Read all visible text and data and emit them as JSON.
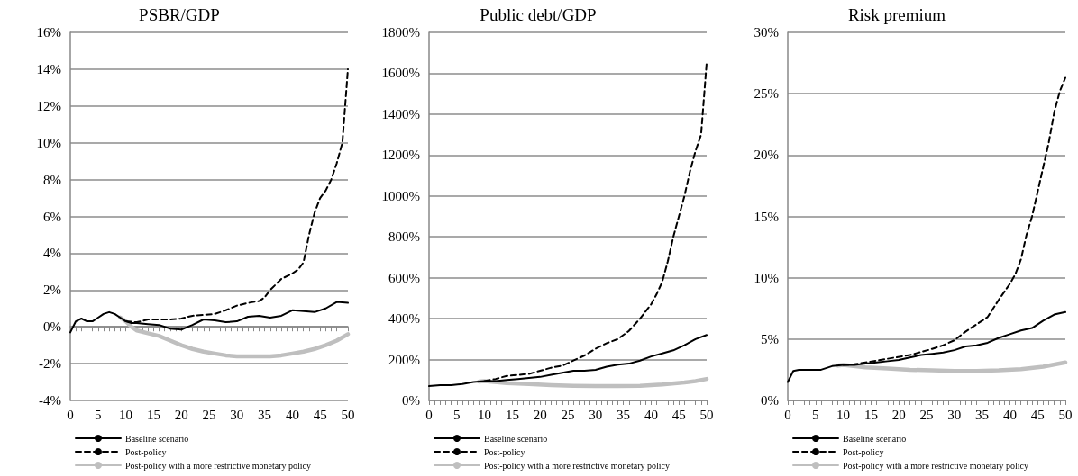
{
  "chart_data": [
    {
      "type": "line",
      "title": "PSBR/GDP",
      "legend": "bottom",
      "grid": "y",
      "marker": "none",
      "xlim": [
        0,
        50
      ],
      "xticks": [
        0,
        {
          "value": 1,
          "label": null
        },
        {
          "value": 2,
          "label": null
        },
        {
          "value": 3,
          "label": null
        },
        {
          "value": 4,
          "label": null
        },
        5,
        {
          "value": 6,
          "label": null
        },
        {
          "value": 7,
          "label": null
        },
        {
          "value": 8,
          "label": null
        },
        {
          "value": 9,
          "label": null
        },
        10,
        {
          "value": 11,
          "label": null
        },
        {
          "value": 12,
          "label": null
        },
        {
          "value": 13,
          "label": null
        },
        {
          "value": 14,
          "label": null
        },
        15,
        {
          "value": 16,
          "label": null
        },
        {
          "value": 17,
          "label": null
        },
        {
          "value": 18,
          "label": null
        },
        {
          "value": 19,
          "label": null
        },
        20,
        {
          "value": 21,
          "label": null
        },
        {
          "value": 22,
          "label": null
        },
        {
          "value": 23,
          "label": null
        },
        {
          "value": 24,
          "label": null
        },
        25,
        {
          "value": 26,
          "label": null
        },
        {
          "value": 27,
          "label": null
        },
        {
          "value": 28,
          "label": null
        },
        {
          "value": 29,
          "label": null
        },
        30,
        {
          "value": 31,
          "label": null
        },
        {
          "value": 32,
          "label": null
        },
        {
          "value": 33,
          "label": null
        },
        {
          "value": 34,
          "label": null
        },
        35,
        {
          "value": 36,
          "label": null
        },
        {
          "value": 37,
          "label": null
        },
        {
          "value": 38,
          "label": null
        },
        {
          "value": 39,
          "label": null
        },
        40,
        {
          "value": 41,
          "label": null
        },
        {
          "value": 42,
          "label": null
        },
        {
          "value": 43,
          "label": null
        },
        {
          "value": 44,
          "label": null
        },
        45,
        {
          "value": 46,
          "label": null
        },
        {
          "value": 47,
          "label": null
        },
        {
          "value": 48,
          "label": null
        },
        {
          "value": 49,
          "label": null
        },
        50
      ],
      "ylim": [
        -4,
        16
      ],
      "yticks": [
        {
          "value": -4,
          "label": "-4%"
        },
        {
          "value": -2,
          "label": "-2%"
        },
        {
          "value": 0,
          "label": "0%"
        },
        {
          "value": 2,
          "label": "2%"
        },
        {
          "value": 4,
          "label": "4%"
        },
        {
          "value": 6,
          "label": "6%"
        },
        {
          "value": 8,
          "label": "8%"
        },
        {
          "value": 10,
          "label": "10%"
        },
        {
          "value": 12,
          "label": "12%"
        },
        {
          "value": 14,
          "label": "14%"
        },
        {
          "value": 16,
          "label": "16%"
        }
      ],
      "series": [
        {
          "name": "Baseline scenario",
          "color": "#000000",
          "line_style": "solid",
          "x": [
            0,
            1,
            2,
            3,
            4,
            5,
            6,
            7,
            8,
            9,
            10,
            11,
            12,
            14,
            16,
            18,
            20,
            22,
            24,
            26,
            28,
            30,
            32,
            34,
            36,
            38,
            40,
            42,
            44,
            46,
            48,
            50
          ],
          "values": [
            -0.3,
            0.3,
            0.45,
            0.3,
            0.3,
            0.5,
            0.7,
            0.8,
            0.7,
            0.5,
            0.3,
            0.2,
            0.2,
            0.15,
            0.1,
            -0.1,
            -0.15,
            0.1,
            0.4,
            0.35,
            0.25,
            0.3,
            0.55,
            0.6,
            0.5,
            0.6,
            0.9,
            0.85,
            0.8,
            1,
            1.35,
            1.3
          ]
        },
        {
          "name": "Post-policy",
          "color": "#000000",
          "line_style": "dashed",
          "x": [
            10,
            12,
            14,
            16,
            18,
            20,
            22,
            24,
            26,
            28,
            30,
            32,
            34,
            35,
            36,
            38,
            40,
            41,
            42,
            43,
            44,
            45,
            46,
            47,
            48,
            49,
            50
          ],
          "values": [
            0.3,
            0.25,
            0.4,
            0.4,
            0.4,
            0.45,
            0.6,
            0.65,
            0.7,
            0.9,
            1.15,
            1.3,
            1.4,
            1.6,
            2,
            2.6,
            2.9,
            3.1,
            3.5,
            5,
            6.2,
            7,
            7.4,
            8,
            8.9,
            10,
            14
          ]
        },
        {
          "name": "Post-policy with a more restrictive monetary policy",
          "color": "#bfbfbf",
          "line_style": "solid",
          "x": [
            9,
            10,
            11,
            12,
            14,
            16,
            18,
            20,
            22,
            24,
            26,
            28,
            30,
            32,
            34,
            36,
            38,
            40,
            42,
            44,
            46,
            48,
            50
          ],
          "values": [
            0.5,
            0.3,
            0,
            -0.2,
            -0.35,
            -0.5,
            -0.75,
            -1,
            -1.2,
            -1.35,
            -1.45,
            -1.55,
            -1.6,
            -1.6,
            -1.6,
            -1.6,
            -1.55,
            -1.45,
            -1.35,
            -1.2,
            -1,
            -0.75,
            -0.4
          ]
        }
      ]
    },
    {
      "type": "line",
      "title": "Public debt/GDP",
      "legend": "bottom",
      "grid": "y",
      "marker": "none",
      "xlim": [
        0,
        50
      ],
      "xticks": [
        0,
        {
          "value": 1,
          "label": null
        },
        {
          "value": 2,
          "label": null
        },
        {
          "value": 3,
          "label": null
        },
        {
          "value": 4,
          "label": null
        },
        5,
        {
          "value": 6,
          "label": null
        },
        {
          "value": 7,
          "label": null
        },
        {
          "value": 8,
          "label": null
        },
        {
          "value": 9,
          "label": null
        },
        10,
        {
          "value": 11,
          "label": null
        },
        {
          "value": 12,
          "label": null
        },
        {
          "value": 13,
          "label": null
        },
        {
          "value": 14,
          "label": null
        },
        15,
        {
          "value": 16,
          "label": null
        },
        {
          "value": 17,
          "label": null
        },
        {
          "value": 18,
          "label": null
        },
        {
          "value": 19,
          "label": null
        },
        20,
        {
          "value": 21,
          "label": null
        },
        {
          "value": 22,
          "label": null
        },
        {
          "value": 23,
          "label": null
        },
        {
          "value": 24,
          "label": null
        },
        25,
        {
          "value": 26,
          "label": null
        },
        {
          "value": 27,
          "label": null
        },
        {
          "value": 28,
          "label": null
        },
        {
          "value": 29,
          "label": null
        },
        30,
        {
          "value": 31,
          "label": null
        },
        {
          "value": 32,
          "label": null
        },
        {
          "value": 33,
          "label": null
        },
        {
          "value": 34,
          "label": null
        },
        35,
        {
          "value": 36,
          "label": null
        },
        {
          "value": 37,
          "label": null
        },
        {
          "value": 38,
          "label": null
        },
        {
          "value": 39,
          "label": null
        },
        40,
        {
          "value": 41,
          "label": null
        },
        {
          "value": 42,
          "label": null
        },
        {
          "value": 43,
          "label": null
        },
        {
          "value": 44,
          "label": null
        },
        45,
        {
          "value": 46,
          "label": null
        },
        {
          "value": 47,
          "label": null
        },
        {
          "value": 48,
          "label": null
        },
        {
          "value": 49,
          "label": null
        },
        50
      ],
      "ylim": [
        0,
        1800
      ],
      "yticks": [
        {
          "value": 0,
          "label": "0%"
        },
        {
          "value": 200,
          "label": "200%"
        },
        {
          "value": 400,
          "label": "400%"
        },
        {
          "value": 600,
          "label": "600%"
        },
        {
          "value": 800,
          "label": "800%"
        },
        {
          "value": 1000,
          "label": "1000%"
        },
        {
          "value": 1200,
          "label": "1200%"
        },
        {
          "value": 1400,
          "label": "1400%"
        },
        {
          "value": 1600,
          "label": "1600%"
        },
        {
          "value": 1800,
          "label": "1800%"
        }
      ],
      "series": [
        {
          "name": "Baseline scenario",
          "color": "#000000",
          "line_style": "solid",
          "x": [
            0,
            2,
            4,
            6,
            8,
            10,
            12,
            14,
            16,
            18,
            20,
            22,
            24,
            26,
            28,
            30,
            32,
            34,
            36,
            38,
            40,
            42,
            44,
            46,
            48,
            50
          ],
          "values": [
            70,
            75,
            75,
            80,
            90,
            95,
            95,
            100,
            105,
            110,
            115,
            125,
            135,
            145,
            145,
            150,
            165,
            175,
            180,
            195,
            215,
            230,
            245,
            270,
            300,
            320
          ]
        },
        {
          "name": "Post-policy",
          "color": "#000000",
          "line_style": "dashed",
          "x": [
            10,
            12,
            14,
            16,
            18,
            20,
            22,
            24,
            26,
            28,
            30,
            32,
            34,
            36,
            38,
            40,
            41,
            42,
            43,
            44,
            45,
            46,
            47,
            48,
            49,
            50
          ],
          "values": [
            95,
            105,
            120,
            125,
            130,
            145,
            160,
            170,
            195,
            220,
            253,
            280,
            300,
            340,
            400,
            470,
            520,
            580,
            680,
            800,
            900,
            1000,
            1120,
            1220,
            1300,
            1650
          ]
        },
        {
          "name": "Post-policy with a more restrictive monetary policy",
          "color": "#bfbfbf",
          "line_style": "solid",
          "x": [
            9,
            10,
            14,
            18,
            22,
            26,
            30,
            34,
            38,
            42,
            46,
            48,
            50
          ],
          "values": [
            92,
            95,
            85,
            80,
            75,
            72,
            70,
            70,
            72,
            78,
            88,
            95,
            105
          ]
        }
      ]
    },
    {
      "type": "line",
      "title": "Risk premium",
      "legend": "bottom",
      "grid": "y",
      "marker": "none",
      "xlim": [
        0,
        50
      ],
      "xticks": [
        0,
        {
          "value": 1,
          "label": null
        },
        {
          "value": 2,
          "label": null
        },
        {
          "value": 3,
          "label": null
        },
        {
          "value": 4,
          "label": null
        },
        5,
        {
          "value": 6,
          "label": null
        },
        {
          "value": 7,
          "label": null
        },
        {
          "value": 8,
          "label": null
        },
        {
          "value": 9,
          "label": null
        },
        10,
        {
          "value": 11,
          "label": null
        },
        {
          "value": 12,
          "label": null
        },
        {
          "value": 13,
          "label": null
        },
        {
          "value": 14,
          "label": null
        },
        15,
        {
          "value": 16,
          "label": null
        },
        {
          "value": 17,
          "label": null
        },
        {
          "value": 18,
          "label": null
        },
        {
          "value": 19,
          "label": null
        },
        20,
        {
          "value": 21,
          "label": null
        },
        {
          "value": 22,
          "label": null
        },
        {
          "value": 23,
          "label": null
        },
        {
          "value": 24,
          "label": null
        },
        25,
        {
          "value": 26,
          "label": null
        },
        {
          "value": 27,
          "label": null
        },
        {
          "value": 28,
          "label": null
        },
        {
          "value": 29,
          "label": null
        },
        30,
        {
          "value": 31,
          "label": null
        },
        {
          "value": 32,
          "label": null
        },
        {
          "value": 33,
          "label": null
        },
        {
          "value": 34,
          "label": null
        },
        35,
        {
          "value": 36,
          "label": null
        },
        {
          "value": 37,
          "label": null
        },
        {
          "value": 38,
          "label": null
        },
        {
          "value": 39,
          "label": null
        },
        40,
        {
          "value": 41,
          "label": null
        },
        {
          "value": 42,
          "label": null
        },
        {
          "value": 43,
          "label": null
        },
        {
          "value": 44,
          "label": null
        },
        45,
        {
          "value": 46,
          "label": null
        },
        {
          "value": 47,
          "label": null
        },
        {
          "value": 48,
          "label": null
        },
        {
          "value": 49,
          "label": null
        },
        50
      ],
      "ylim": [
        0,
        30
      ],
      "yticks": [
        {
          "value": 0,
          "label": "0%"
        },
        {
          "value": 5,
          "label": "5%"
        },
        {
          "value": 10,
          "label": "10%"
        },
        {
          "value": 15,
          "label": "15%"
        },
        {
          "value": 20,
          "label": "20%"
        },
        {
          "value": 25,
          "label": "25%"
        },
        {
          "value": 30,
          "label": "30%"
        }
      ],
      "series": [
        {
          "name": "Baseline scenario",
          "color": "#000000",
          "line_style": "solid",
          "x": [
            0,
            1,
            2,
            4,
            6,
            8,
            10,
            12,
            14,
            16,
            18,
            20,
            22,
            24,
            26,
            28,
            30,
            32,
            34,
            36,
            38,
            40,
            42,
            44,
            46,
            48,
            50
          ],
          "values": [
            1.5,
            2.4,
            2.5,
            2.5,
            2.5,
            2.8,
            2.9,
            2.9,
            3,
            3.1,
            3.2,
            3.3,
            3.5,
            3.7,
            3.8,
            3.9,
            4.1,
            4.4,
            4.5,
            4.7,
            5.1,
            5.4,
            5.7,
            5.9,
            6.5,
            7,
            7.2
          ]
        },
        {
          "name": "Post-policy",
          "color": "#000000",
          "line_style": "dashed",
          "x": [
            10,
            12,
            14,
            18,
            22,
            26,
            28,
            30,
            32,
            34,
            36,
            38,
            40,
            41,
            42,
            43,
            44,
            45,
            46,
            47,
            48,
            49,
            50
          ],
          "values": [
            2.9,
            2.95,
            3.1,
            3.4,
            3.7,
            4.2,
            4.5,
            4.9,
            5.6,
            6.2,
            6.8,
            8.2,
            9.5,
            10.3,
            11.5,
            13.5,
            15,
            17,
            19,
            21,
            23.5,
            25.2,
            26.3
          ]
        },
        {
          "name": "Post-policy with a more restrictive monetary policy",
          "color": "#bfbfbf",
          "line_style": "solid",
          "x": [
            9,
            10,
            14,
            18,
            22,
            26,
            30,
            34,
            38,
            42,
            46,
            50
          ],
          "values": [
            2.85,
            2.9,
            2.7,
            2.6,
            2.5,
            2.45,
            2.4,
            2.4,
            2.45,
            2.55,
            2.75,
            3.1
          ]
        }
      ]
    }
  ]
}
